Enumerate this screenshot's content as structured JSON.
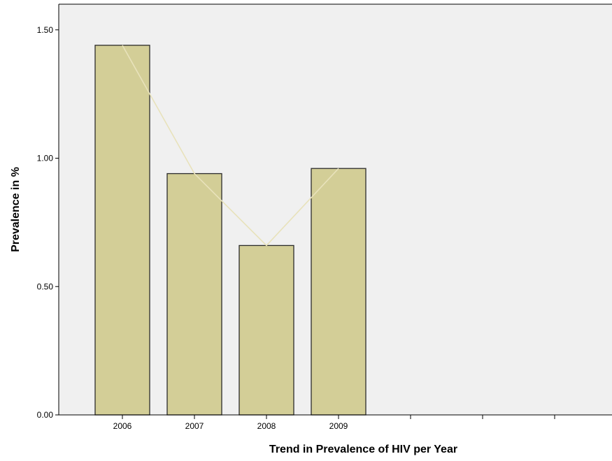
{
  "chart_data": {
    "type": "bar",
    "title": "",
    "xlabel": "Trend in Prevalence of HIV per Year",
    "ylabel": "Prevalence in %",
    "categories": [
      "2006",
      "2007",
      "2008",
      "2009"
    ],
    "values": [
      1.44,
      0.94,
      0.66,
      0.96
    ],
    "x_extra_empty_slots": 3,
    "ylim": [
      0,
      1.6
    ],
    "yticks": [
      {
        "value": 0.0,
        "label": "0.00"
      },
      {
        "value": 0.5,
        "label": "0.50"
      },
      {
        "value": 1.0,
        "label": "1.00"
      },
      {
        "value": 1.5,
        "label": "1.50"
      }
    ],
    "overlay_line": true,
    "grid": false,
    "legend": "none",
    "colors": {
      "plot_background": "#f0f0f0",
      "bar_fill": "#d3ce97",
      "bar_stroke": "#2b2b2b",
      "line": "#e8e2bb",
      "axis": "#000000"
    }
  }
}
